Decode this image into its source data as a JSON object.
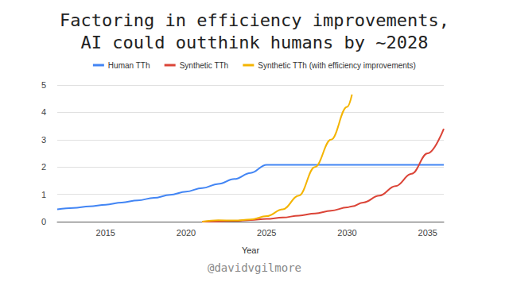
{
  "chart_data": {
    "type": "line",
    "title": "Factoring in efficiency improvements,\nAI could outthink humans by ~2028",
    "x_label": "Year",
    "annotations": [
      "@davidvgilmore"
    ],
    "legend": "top",
    "grid": true,
    "x": [
      2012,
      2013,
      2014,
      2015,
      2016,
      2017,
      2018,
      2019,
      2020,
      2021,
      2022,
      2023,
      2024,
      2025,
      2026,
      2027,
      2028,
      2029,
      2030,
      2030.3,
      2031,
      2032,
      2033,
      2034,
      2035,
      2036
    ],
    "xlim": [
      2012,
      2036
    ],
    "xticks": [
      2015,
      2020,
      2025,
      2030,
      2035
    ],
    "ylim": [
      0,
      5
    ],
    "yticks": [
      0,
      1,
      2,
      3,
      4,
      5
    ],
    "series": [
      {
        "name": "Human TTh",
        "color": "#4285f4",
        "values": [
          0.45,
          0.5,
          0.56,
          0.62,
          0.7,
          0.78,
          0.87,
          0.98,
          1.1,
          1.23,
          1.38,
          1.56,
          1.78,
          2.08,
          2.08,
          2.08,
          2.08,
          2.08,
          2.08,
          2.08,
          2.08,
          2.08,
          2.08,
          2.08,
          2.08,
          2.08
        ]
      },
      {
        "name": "Synthetic TTh",
        "color": "#db4437",
        "values": [
          null,
          null,
          null,
          null,
          null,
          null,
          null,
          null,
          null,
          0,
          0.01,
          0.03,
          0.06,
          0.1,
          0.15,
          0.22,
          0.3,
          0.4,
          0.52,
          0.56,
          0.7,
          0.95,
          1.3,
          1.75,
          2.5,
          3.4
        ]
      },
      {
        "name": "Synthetic TTh (with efficiency improvements)",
        "color": "#f4b400",
        "values": [
          null,
          null,
          null,
          null,
          null,
          null,
          null,
          null,
          null,
          0,
          0.05,
          0.04,
          0.08,
          0.2,
          0.45,
          0.95,
          2.0,
          3.0,
          4.2,
          4.65,
          null,
          null,
          null,
          null,
          null,
          null
        ]
      }
    ]
  }
}
